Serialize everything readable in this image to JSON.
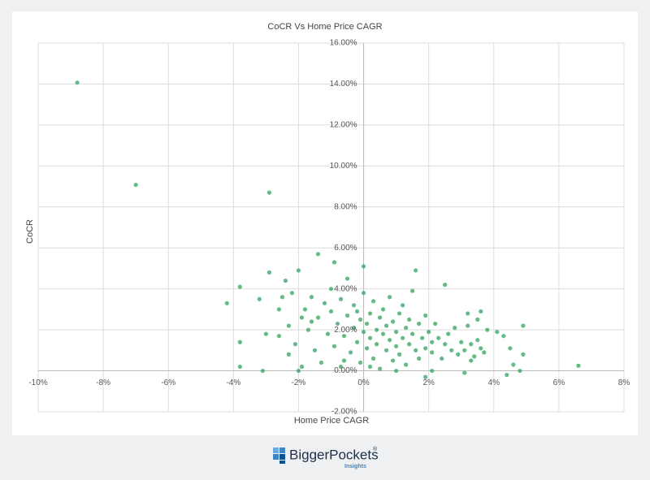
{
  "chart_data": {
    "type": "scatter",
    "title": "CoCR Vs Home Price CAGR",
    "x_label": "Home Price CAGR",
    "y_label": "CoCR",
    "color": "#2ea65c",
    "grid": true,
    "xlim": [
      -10,
      8
    ],
    "ylim": [
      -2,
      16
    ],
    "xticks": [
      {
        "value": -10,
        "label": "-10%"
      },
      {
        "value": -8,
        "label": "-8%"
      },
      {
        "value": -6,
        "label": "-6%"
      },
      {
        "value": -4,
        "label": "-4%"
      },
      {
        "value": -2,
        "label": "-2%"
      },
      {
        "value": 0,
        "label": "0%"
      },
      {
        "value": 2,
        "label": "2%"
      },
      {
        "value": 4,
        "label": "4%"
      },
      {
        "value": 6,
        "label": "6%"
      },
      {
        "value": 8,
        "label": "8%"
      }
    ],
    "yticks": [
      {
        "value": -2,
        "label": "-2.00%"
      },
      {
        "value": 0,
        "label": "0.00%"
      },
      {
        "value": 2,
        "label": "2.00%"
      },
      {
        "value": 4,
        "label": "4.00%"
      },
      {
        "value": 6,
        "label": "6.00%"
      },
      {
        "value": 8,
        "label": "8.00%"
      },
      {
        "value": 10,
        "label": "10.00%"
      },
      {
        "value": 12,
        "label": "12.00%"
      },
      {
        "value": 14,
        "label": "14.00%"
      },
      {
        "value": 16,
        "label": "16.00%"
      }
    ],
    "x": [
      -8.8,
      -7.0,
      -2.9,
      -4.2,
      -3.8,
      -3.8,
      -3.8,
      -3.1,
      -2,
      -3.2,
      -2.9,
      -2.4,
      -2.0,
      -1.4,
      -0.9,
      0,
      1.6,
      2.5,
      6.6,
      4.9,
      4.9,
      4.8,
      4.6,
      4.4,
      4.5,
      4.3,
      4.1,
      3.6,
      3.2,
      3.5,
      3.3,
      3.1,
      2.1,
      1.9,
      -3.0,
      -2.6,
      -2.6,
      -2.2,
      -2.3,
      -2.1,
      -2.3,
      -1.8,
      -1.7,
      -1.6,
      -1.5,
      -1.4,
      -1.3,
      -1.2,
      -1.1,
      -1.0,
      -1.0,
      -0.9,
      -0.8,
      -0.7,
      -0.7,
      -0.6,
      -0.5,
      -0.5,
      -0.4,
      -0.3,
      -0.3,
      -0.2,
      -0.1,
      -0.1,
      0.0,
      0.0,
      0.1,
      0.1,
      0.2,
      0.2,
      0.3,
      0.3,
      0.4,
      0.4,
      0.5,
      0.5,
      0.6,
      0.6,
      0.7,
      0.7,
      0.8,
      0.8,
      0.9,
      0.9,
      1.0,
      1.0,
      1.1,
      1.1,
      1.2,
      1.2,
      1.3,
      1.3,
      1.4,
      1.4,
      1.5,
      1.5,
      1.6,
      1.7,
      1.7,
      1.8,
      1.9,
      1.9,
      2.0,
      2.1,
      2.1,
      2.2,
      2.3,
      2.4,
      2.5,
      2.6,
      2.7,
      2.8,
      2.9,
      3.0,
      3.1,
      3.2,
      3.3,
      3.4,
      3.5,
      3.6,
      3.7,
      3.8,
      -1.6,
      -1.9,
      -2.5,
      -0.6,
      0.2,
      1.0,
      -1.9,
      -0.2
    ],
    "values": [
      14.07,
      9.08,
      8.7,
      3.3,
      4.1,
      1.4,
      0.2,
      0,
      0,
      3.5,
      4.8,
      4.4,
      4.9,
      5.7,
      5.3,
      5.1,
      4.9,
      4.2,
      0.25,
      2.2,
      0.8,
      0,
      0.3,
      -0.2,
      1.1,
      1.7,
      1.9,
      2.9,
      2.8,
      2.5,
      0.5,
      -0.1,
      0,
      -0.3,
      1.8,
      1.7,
      3.0,
      3.8,
      2.2,
      1.3,
      0.8,
      3.0,
      2.0,
      3.6,
      1.0,
      2.6,
      0.4,
      3.3,
      1.8,
      2.9,
      4.0,
      1.2,
      2.3,
      3.5,
      0.2,
      1.7,
      2.7,
      4.5,
      0.9,
      2.1,
      3.2,
      1.4,
      2.5,
      0.4,
      1.9,
      3.8,
      2.3,
      1.1,
      2.8,
      1.6,
      3.4,
      0.6,
      2.0,
      1.3,
      2.6,
      0.1,
      1.8,
      3.0,
      1.0,
      2.2,
      1.5,
      3.6,
      0.5,
      2.4,
      1.2,
      1.9,
      2.8,
      0.8,
      1.6,
      3.2,
      2.1,
      0.3,
      1.3,
      2.5,
      1.8,
      3.9,
      1.0,
      2.3,
      0.6,
      1.6,
      2.7,
      1.1,
      1.9,
      0.9,
      1.4,
      2.3,
      1.6,
      0.6,
      1.3,
      1.8,
      1.0,
      2.1,
      0.8,
      1.4,
      1.0,
      2.2,
      1.3,
      0.7,
      1.5,
      1.1,
      0.9,
      2.0,
      2.4,
      2.6,
      3.6,
      0.5,
      0.2,
      0.0,
      0.2,
      2.9
    ]
  },
  "logo": {
    "name": "BiggerPockets",
    "mark": "®",
    "tagline": "Insights"
  }
}
